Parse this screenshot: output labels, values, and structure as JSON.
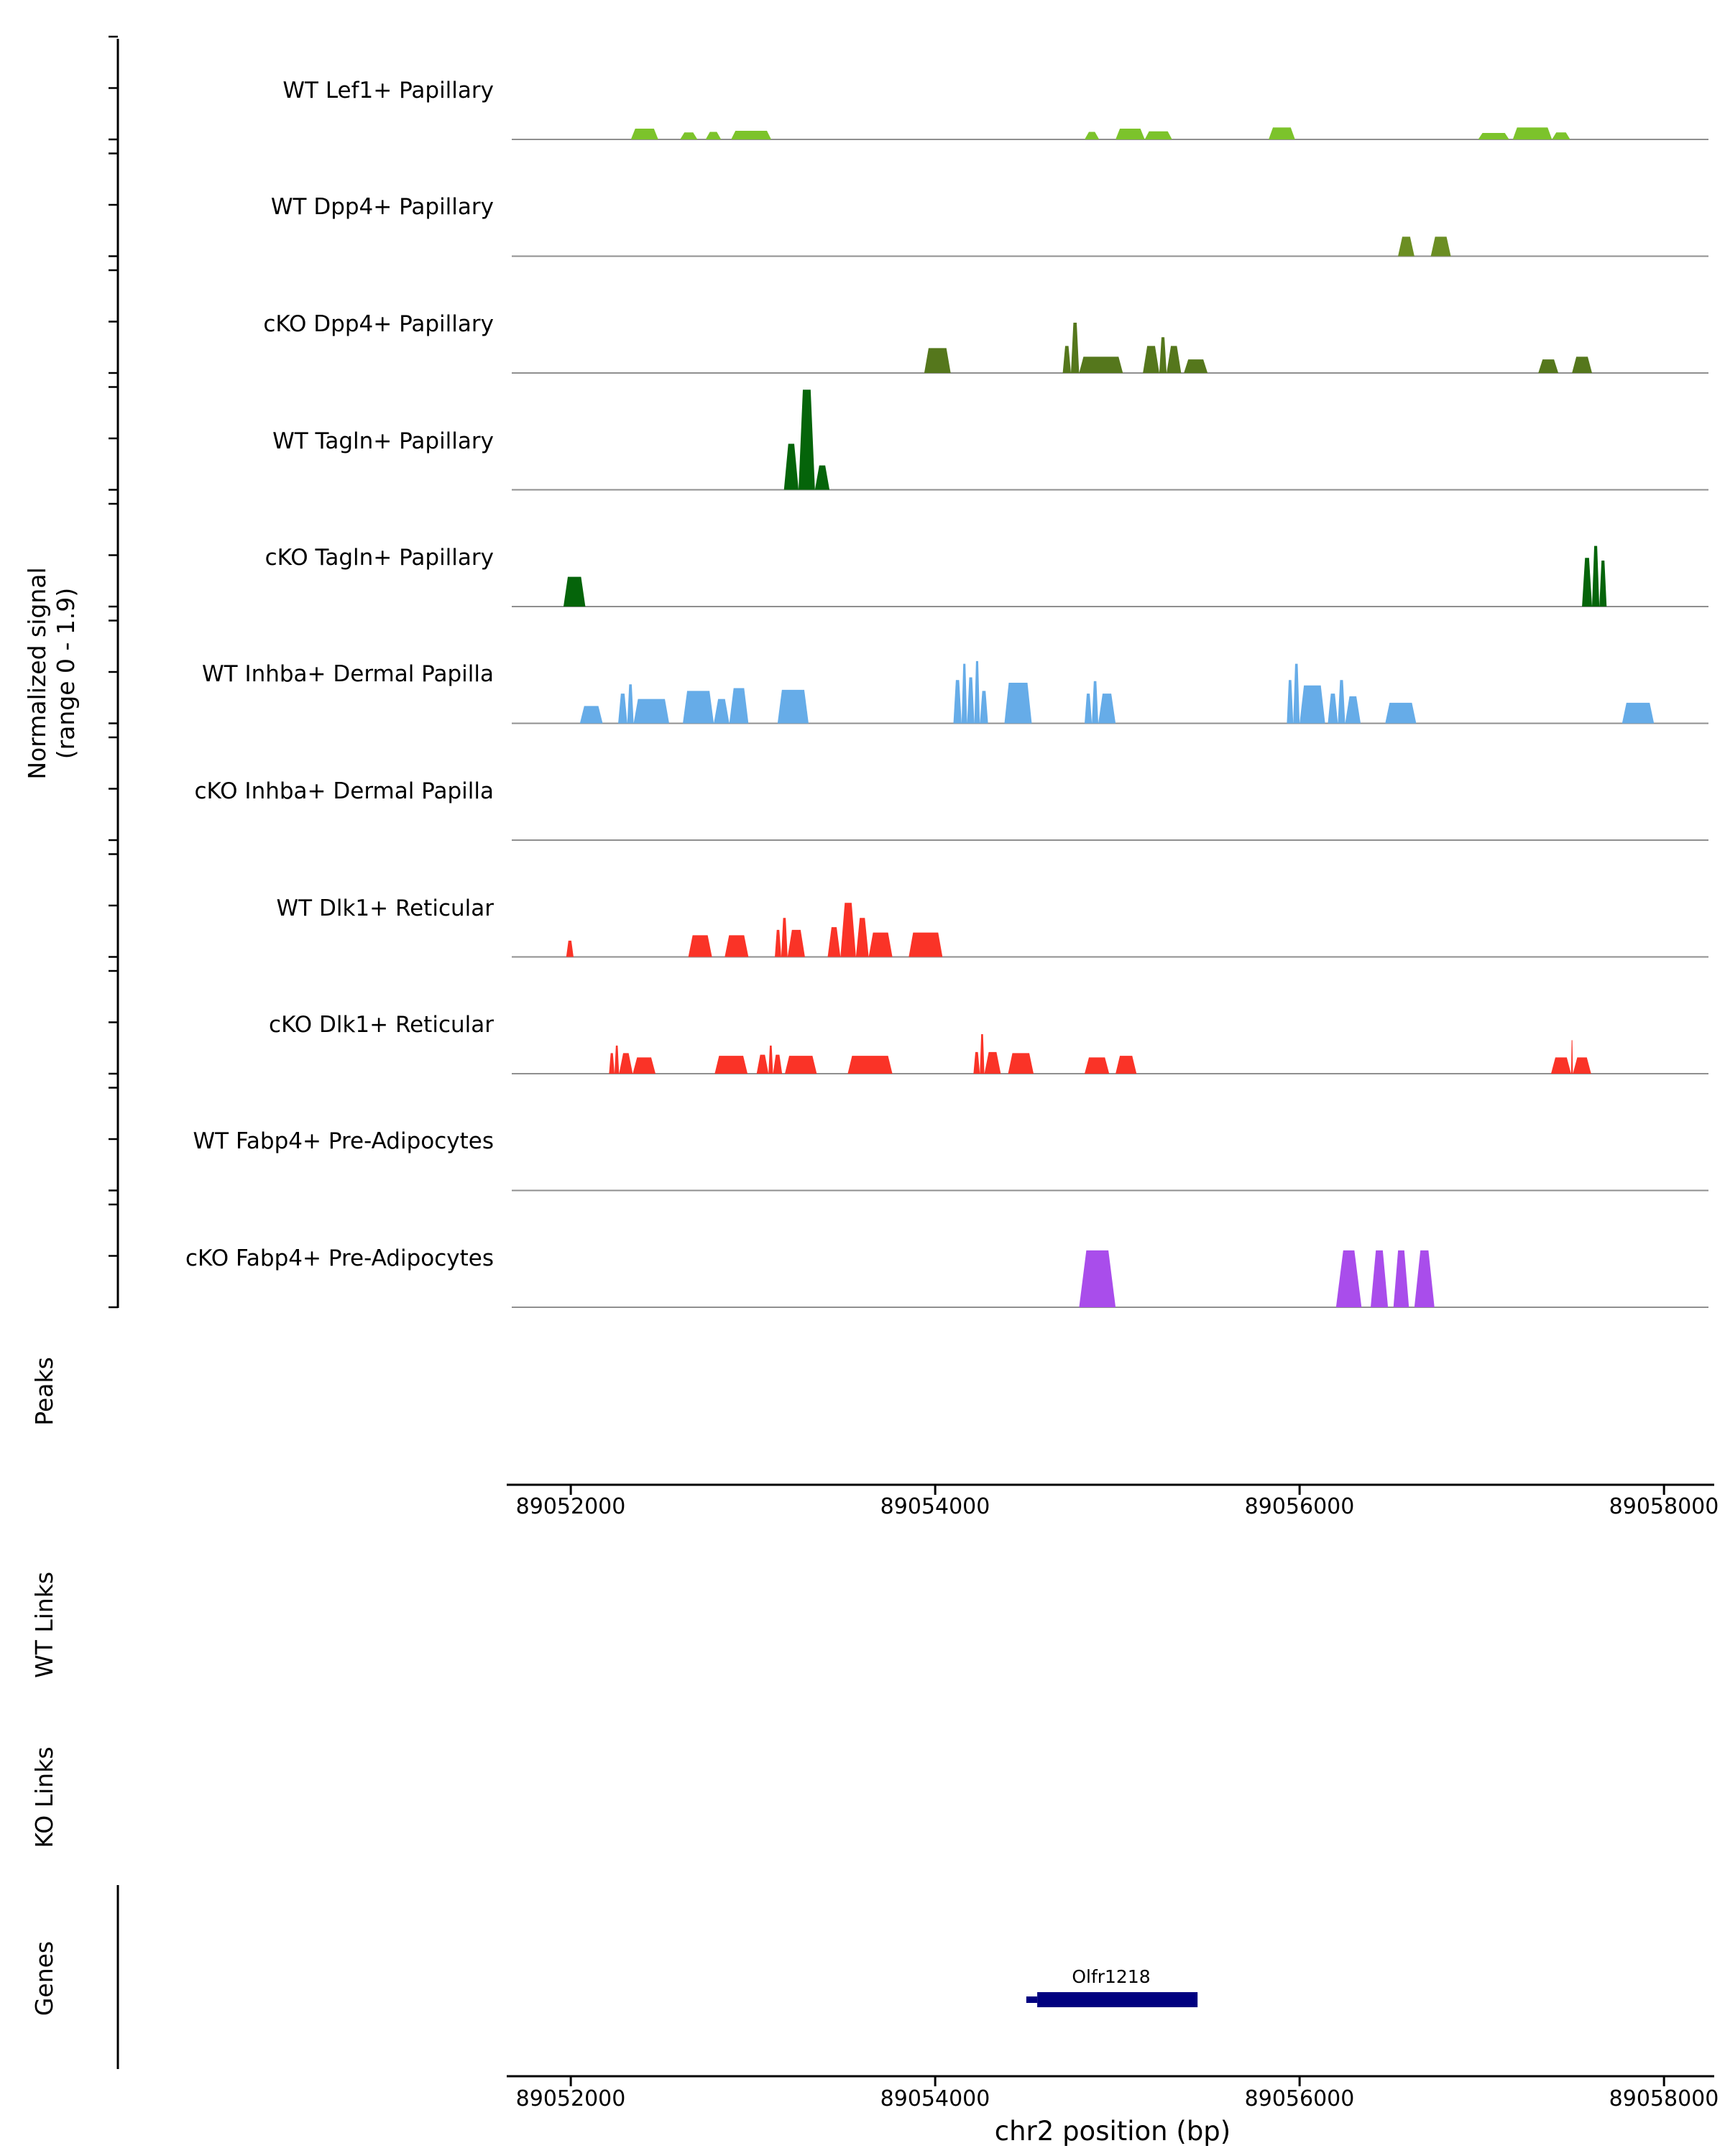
{
  "figure": {
    "y_axis_title_line1": "Normalized signal",
    "y_axis_title_line2": "(range 0 - 1.9)",
    "section_labels": {
      "peaks": "Peaks",
      "wt_links": "WT Links",
      "ko_links": "KO Links",
      "genes": "Genes"
    },
    "x_axis_title": "chr2 position (bp)"
  },
  "chart_data": {
    "type": "area",
    "description": "Genome browser normalized signal coverage tracks over chr2:89052000-89058000 with Peaks, WT Links, KO Links and Genes sections",
    "x_domain": [
      89051676,
      89058244
    ],
    "x_ticks": [
      89052000,
      89054000,
      89056000,
      89058000
    ],
    "x_tick_labels": [
      "89052000",
      "89054000",
      "89056000",
      "89058000"
    ],
    "signal_range": [
      0,
      1.9
    ],
    "tracks": [
      {
        "label": "WT Lef1+ Papillary",
        "color": "#7CC32B",
        "blocks": [
          [
            89052330,
            89052480,
            0.2
          ],
          [
            89052600,
            89052695,
            0.13
          ],
          [
            89052740,
            89052825,
            0.14
          ],
          [
            89052880,
            89053100,
            0.16
          ],
          [
            89054820,
            89054900,
            0.14
          ],
          [
            89054990,
            89055150,
            0.2
          ],
          [
            89055150,
            89055300,
            0.15
          ],
          [
            89055830,
            89055975,
            0.22
          ],
          [
            89056980,
            89057150,
            0.12
          ],
          [
            89057170,
            89057385,
            0.22
          ],
          [
            89057385,
            89057485,
            0.13
          ]
        ]
      },
      {
        "label": "WT Dpp4+ Papillary",
        "color": "#6B8E23",
        "blocks": [
          [
            89056540,
            89056630,
            0.36
          ],
          [
            89056720,
            89056830,
            0.36
          ]
        ]
      },
      {
        "label": "cKO Dpp4+ Papillary",
        "color": "#55771C",
        "blocks": [
          [
            89053940,
            89054085,
            0.46
          ],
          [
            89054700,
            89054745,
            0.5
          ],
          [
            89054745,
            89054790,
            0.93
          ],
          [
            89054790,
            89055030,
            0.3
          ],
          [
            89055140,
            89055230,
            0.5
          ],
          [
            89055230,
            89055270,
            0.66
          ],
          [
            89055270,
            89055350,
            0.5
          ],
          [
            89055365,
            89055495,
            0.25
          ],
          [
            89057310,
            89057420,
            0.25
          ],
          [
            89057495,
            89057605,
            0.3
          ]
        ]
      },
      {
        "label": "WT Tagln+ Papillary",
        "color": "#05640A",
        "blocks": [
          [
            89053170,
            89053250,
            0.85
          ],
          [
            89053250,
            89053340,
            1.85
          ],
          [
            89053340,
            89053420,
            0.45
          ]
        ]
      },
      {
        "label": "cKO Tagln+ Papillary",
        "color": "#05640A",
        "blocks": [
          [
            89051960,
            89052080,
            0.55
          ],
          [
            89057550,
            89057605,
            0.9
          ],
          [
            89057605,
            89057645,
            1.12
          ],
          [
            89057645,
            89057685,
            0.85
          ]
        ]
      },
      {
        "label": "WT Inhba+ Dermal Papilla",
        "color": "#66ACE8",
        "blocks": [
          [
            89052050,
            89052175,
            0.32
          ],
          [
            89052260,
            89052310,
            0.55
          ],
          [
            89052310,
            89052345,
            0.72
          ],
          [
            89052345,
            89052540,
            0.45
          ],
          [
            89052615,
            89052785,
            0.6
          ],
          [
            89052785,
            89052870,
            0.45
          ],
          [
            89052870,
            89052975,
            0.65
          ],
          [
            89053135,
            89053305,
            0.62
          ],
          [
            89054100,
            89054145,
            0.8
          ],
          [
            89054145,
            89054175,
            1.1
          ],
          [
            89054175,
            89054215,
            0.85
          ],
          [
            89054215,
            89054245,
            1.15
          ],
          [
            89054245,
            89054290,
            0.6
          ],
          [
            89054380,
            89054530,
            0.75
          ],
          [
            89054820,
            89054860,
            0.55
          ],
          [
            89054860,
            89054895,
            0.78
          ],
          [
            89054895,
            89054990,
            0.55
          ],
          [
            89055930,
            89055965,
            0.8
          ],
          [
            89055965,
            89056000,
            1.1
          ],
          [
            89056000,
            89056140,
            0.7
          ],
          [
            89056155,
            89056210,
            0.55
          ],
          [
            89056210,
            89056250,
            0.8
          ],
          [
            89056250,
            89056335,
            0.5
          ],
          [
            89056470,
            89056640,
            0.38
          ],
          [
            89057770,
            89057945,
            0.38
          ]
        ]
      },
      {
        "label": "cKO Inhba+ Dermal Papilla",
        "color": "#66ACE8",
        "blocks": []
      },
      {
        "label": "WT Dlk1+ Reticular",
        "color": "#FA3327",
        "blocks": [
          [
            89051975,
            89052015,
            0.3
          ],
          [
            89052645,
            89052775,
            0.4
          ],
          [
            89052845,
            89052975,
            0.4
          ],
          [
            89053120,
            89053155,
            0.5
          ],
          [
            89053155,
            89053190,
            0.72
          ],
          [
            89053190,
            89053285,
            0.5
          ],
          [
            89053410,
            89053480,
            0.55
          ],
          [
            89053480,
            89053565,
            1.0
          ],
          [
            89053565,
            89053635,
            0.72
          ],
          [
            89053635,
            89053765,
            0.45
          ],
          [
            89053855,
            89054040,
            0.45
          ]
        ]
      },
      {
        "label": "cKO Dlk1+ Reticular",
        "color": "#FA3327",
        "blocks": [
          [
            89052210,
            89052240,
            0.38
          ],
          [
            89052240,
            89052265,
            0.52
          ],
          [
            89052265,
            89052340,
            0.38
          ],
          [
            89052340,
            89052465,
            0.3
          ],
          [
            89052790,
            89052970,
            0.33
          ],
          [
            89053020,
            89053085,
            0.35
          ],
          [
            89053085,
            89053110,
            0.52
          ],
          [
            89053110,
            89053160,
            0.35
          ],
          [
            89053175,
            89053350,
            0.33
          ],
          [
            89053520,
            89053765,
            0.33
          ],
          [
            89054210,
            89054245,
            0.4
          ],
          [
            89054245,
            89054270,
            0.73
          ],
          [
            89054270,
            89054360,
            0.4
          ],
          [
            89054400,
            89054540,
            0.38
          ],
          [
            89054820,
            89054955,
            0.3
          ],
          [
            89054990,
            89055105,
            0.33
          ],
          [
            89057380,
            89057490,
            0.3
          ],
          [
            89057490,
            89057500,
            0.62
          ],
          [
            89057500,
            89057600,
            0.3
          ]
        ]
      },
      {
        "label": "WT Fabp4+ Pre-Adipocytes",
        "color": "#A94DEB",
        "blocks": []
      },
      {
        "label": "cKO Fabp4+ Pre-Adipocytes",
        "color": "#A94DEB",
        "blocks": [
          [
            89054790,
            89054990,
            1.05
          ],
          [
            89056200,
            89056340,
            1.05
          ],
          [
            89056390,
            89056485,
            1.05
          ],
          [
            89056515,
            89056600,
            1.05
          ],
          [
            89056630,
            89056740,
            1.05
          ]
        ]
      }
    ],
    "gene_track": {
      "genes": [
        {
          "name": "Olfr1218",
          "start": 89054500,
          "thick_start": 89054560,
          "end": 89055440,
          "color": "#000080"
        }
      ]
    }
  }
}
